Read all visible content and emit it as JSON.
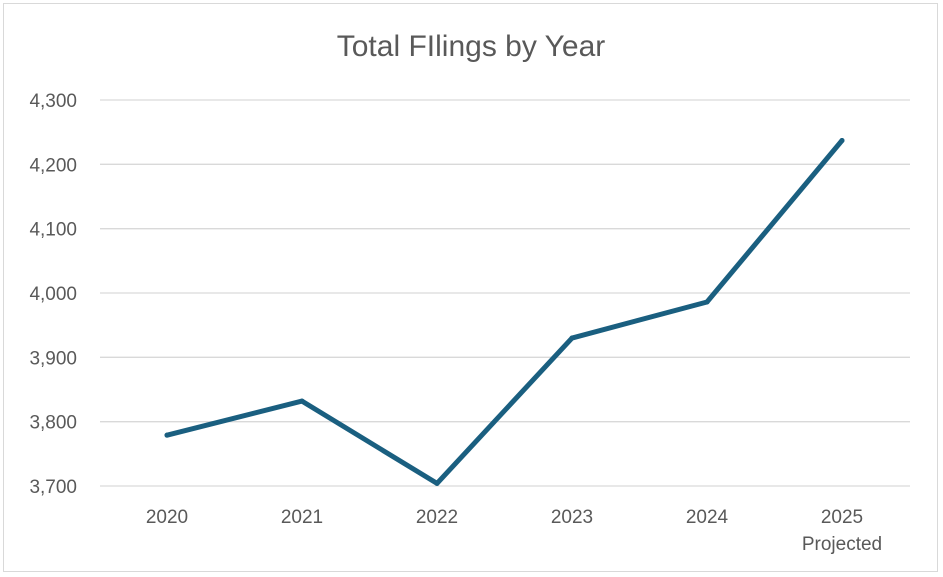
{
  "chart_data": {
    "type": "line",
    "title": "Total FIlings by Year",
    "xlabel": "",
    "ylabel": "",
    "categories": [
      [
        "2020"
      ],
      [
        "2021"
      ],
      [
        "2022"
      ],
      [
        "2023"
      ],
      [
        "2024"
      ],
      [
        "2025",
        "Projected"
      ]
    ],
    "series": [
      {
        "name": "Total Filings",
        "values": [
          3779,
          3832,
          3704,
          3930,
          3986,
          4237
        ]
      }
    ],
    "ylim": [
      3700,
      4300
    ],
    "yticks": [
      3700,
      3800,
      3900,
      4000,
      4100,
      4200,
      4300
    ],
    "ytick_labels": [
      "3,700",
      "3,800",
      "3,900",
      "4,000",
      "4,100",
      "4,200",
      "4,300"
    ],
    "grid": true,
    "legend": "none",
    "colors": {
      "series": "#1a5f80",
      "grid": "#d9d9d9",
      "text": "#595959"
    }
  }
}
